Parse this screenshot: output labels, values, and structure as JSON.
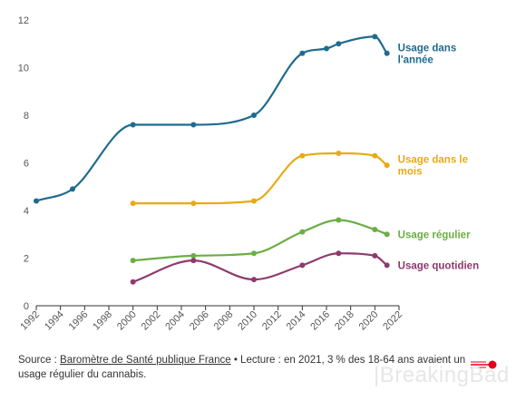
{
  "chart_data": {
    "type": "line",
    "xlim": [
      1992,
      2022
    ],
    "ylim": [
      0,
      12
    ],
    "x_ticks": [
      "1992",
      "1994",
      "1996",
      "1998",
      "2000",
      "2002",
      "2004",
      "2006",
      "2008",
      "2010",
      "2012",
      "2014",
      "2016",
      "2018",
      "2020",
      "2022"
    ],
    "y_ticks": [
      "0",
      "2",
      "4",
      "6",
      "8",
      "10",
      "12"
    ],
    "grid": false,
    "series": [
      {
        "name": "Usage dans l'année",
        "label_lines": [
          "Usage dans",
          "l'année"
        ],
        "color": "#1f6b8e",
        "x": [
          1992,
          1995,
          2000,
          2005,
          2010,
          2014,
          2016,
          2017,
          2020,
          2021
        ],
        "y": [
          4.4,
          4.9,
          7.6,
          7.6,
          8.0,
          10.6,
          10.8,
          11.0,
          11.3,
          10.6
        ]
      },
      {
        "name": "Usage dans le mois",
        "label_lines": [
          "Usage dans le",
          "mois"
        ],
        "color": "#e8aa14",
        "x": [
          2000,
          2005,
          2010,
          2014,
          2017,
          2020,
          2021
        ],
        "y": [
          4.3,
          4.3,
          4.4,
          6.3,
          6.4,
          6.3,
          5.9
        ]
      },
      {
        "name": "Usage régulier",
        "label_lines": [
          "Usage régulier"
        ],
        "color": "#6aae45",
        "x": [
          2000,
          2005,
          2010,
          2014,
          2017,
          2020,
          2021
        ],
        "y": [
          1.9,
          2.1,
          2.2,
          3.1,
          3.6,
          3.2,
          3.0
        ]
      },
      {
        "name": "Usage quotidien",
        "label_lines": [
          "Usage quotidien"
        ],
        "color": "#8e3a6e",
        "x": [
          2000,
          2005,
          2010,
          2014,
          2017,
          2020,
          2021
        ],
        "y": [
          1.0,
          1.9,
          1.1,
          1.7,
          2.2,
          2.1,
          1.7
        ]
      }
    ]
  },
  "caption": {
    "source_prefix": "Source : ",
    "source_link": "Baromètre de Santé publique France",
    "separator": " • ",
    "lecture": "Lecture : en 2021, 3 % des 18-64 ans avaient un usage régulier du cannabis."
  },
  "branding": {
    "logo_text": "ouest france",
    "logo_color": "#e2001a",
    "watermark": "|BreakingBad"
  }
}
